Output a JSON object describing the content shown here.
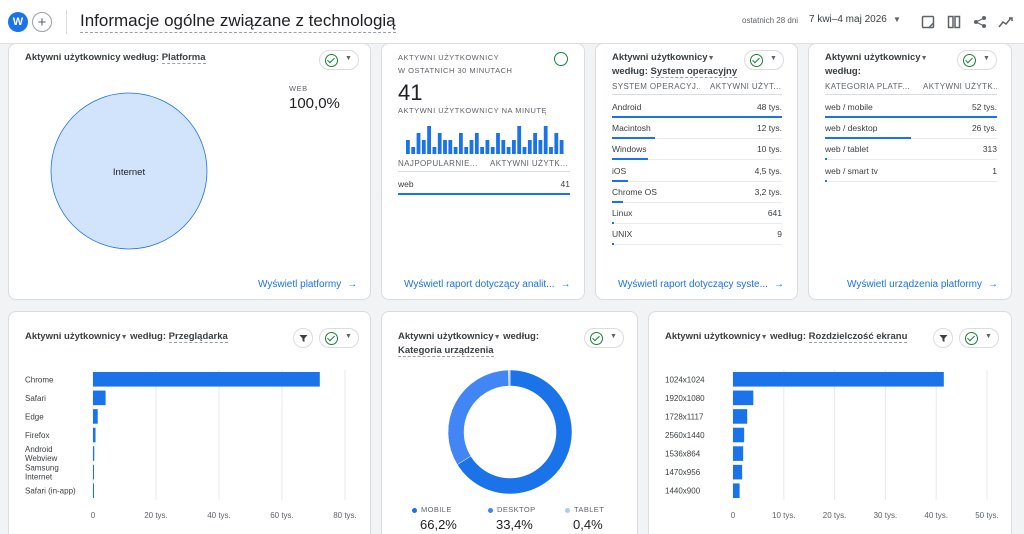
{
  "header": {
    "badge": "W",
    "plus": "+",
    "title": "Informacje ogólne związane z technologią",
    "date_label": "ostatnich 28 dni",
    "date_value": "7 kwi–4 maj 2026",
    "icons": [
      "compare-icon",
      "columns-icon",
      "share-icon",
      "insights-icon"
    ]
  },
  "platform_card": {
    "title_prefix": "Aktywni użytkownicy według: ",
    "title_dim": "Platforma",
    "legend_label": "WEB",
    "legend_value": "100,0%",
    "slice_label": "Internet",
    "link": "Wyświetl platformy",
    "chart_data": {
      "type": "pie",
      "categories": [
        "Internet"
      ],
      "values": [
        100.0
      ]
    }
  },
  "realtime_card": {
    "label1": "AKTYWNI UŻYTKOWNICY",
    "label2": "W OSTATNICH 30 MINUTACH",
    "big_value": "41",
    "per_minute_label": "AKTYWNI UŻYTKOWNICY NA MINUTĘ",
    "col1": "NAJPOPULARNIE...",
    "col2": "AKTYWNI UŻYTK...",
    "rows": [
      {
        "label": "web",
        "value": "41"
      }
    ],
    "link": "Wyświetl raport dotyczący analit...",
    "chart_data": {
      "type": "bar",
      "values": [
        2,
        1,
        3,
        2,
        4,
        1,
        3,
        2,
        2,
        1,
        3,
        1,
        2,
        3,
        1,
        2,
        1,
        3,
        2,
        1,
        2,
        4,
        1,
        2,
        3,
        2,
        4,
        1,
        3,
        2
      ]
    }
  },
  "os_card": {
    "title_prefix": "Aktywni użytkownicy",
    "title_mid": " według: ",
    "title_dim": "System operacyjny",
    "col1": "SYSTEM OPERACYJ...",
    "col2": "AKTYWNI UŻYT...",
    "rows": [
      {
        "label": "Android",
        "value": "48 tys.",
        "share": 1.0
      },
      {
        "label": "Macintosh",
        "value": "12 tys.",
        "share": 0.25
      },
      {
        "label": "Windows",
        "value": "10 tys.",
        "share": 0.21
      },
      {
        "label": "iOS",
        "value": "4,5 tys.",
        "share": 0.094
      },
      {
        "label": "Chrome OS",
        "value": "3,2 tys.",
        "share": 0.067
      },
      {
        "label": "Linux",
        "value": "641",
        "share": 0.013
      },
      {
        "label": "UNIX",
        "value": "9",
        "share": 0.0002
      }
    ],
    "link": "Wyświetl raport dotyczący syste..."
  },
  "device_platform_card": {
    "title_prefix": "Aktywni użytkownicy",
    "title_mid": " według:",
    "col1": "KATEGORIA PLATF...",
    "col2": "AKTYWNI UŻYTK...",
    "rows": [
      {
        "label": "web / mobile",
        "value": "52 tys.",
        "share": 1.0
      },
      {
        "label": "web / desktop",
        "value": "26 tys.",
        "share": 0.5
      },
      {
        "label": "web / tablet",
        "value": "313",
        "share": 0.006
      },
      {
        "label": "web / smart tv",
        "value": "1",
        "share": 0.0
      }
    ],
    "link": "Wyświetl urządzenia platformy"
  },
  "browser_card": {
    "title_prefix": "Aktywni użytkownicy",
    "title_mid": " według: ",
    "title_dim": "Przeglądarka",
    "chart_data": {
      "type": "bar",
      "orientation": "horizontal",
      "categories": [
        "Chrome",
        "Safari",
        "Edge",
        "Firefox",
        "Android Webview",
        "Samsung Internet",
        "Safari (in-app)"
      ],
      "category_lines": [
        [
          "Chrome"
        ],
        [
          "Safari"
        ],
        [
          "Edge"
        ],
        [
          "Firefox"
        ],
        [
          "Android",
          "Webview"
        ],
        [
          "Samsung",
          "Internet"
        ],
        [
          "Safari (in-app)"
        ]
      ],
      "values": [
        72,
        4,
        1.5,
        0.8,
        0.4,
        0.3,
        0.3
      ],
      "xlim": [
        0,
        80
      ],
      "ticks": [
        0,
        20,
        40,
        60,
        80
      ],
      "tick_labels": [
        "0",
        "20 tys.",
        "40 tys.",
        "60 tys.",
        "80 tys."
      ]
    }
  },
  "device_card": {
    "title_prefix": "Aktywni użytkownicy",
    "title_mid": " według:",
    "title_dim": "Kategoria urządzenia",
    "chart_data": {
      "type": "pie",
      "categories": [
        "MOBILE",
        "DESKTOP",
        "TABLET"
      ],
      "values": [
        66.2,
        33.4,
        0.4
      ],
      "value_labels": [
        "66,2%",
        "33,4%",
        "0,4%"
      ]
    },
    "colors": [
      "#1a73e8",
      "#4285f4",
      "#aecbfa"
    ]
  },
  "resolution_card": {
    "title_prefix": "Aktywni użytkownicy",
    "title_mid": " według: ",
    "title_dim": "Rozdzielczość ekranu",
    "chart_data": {
      "type": "bar",
      "orientation": "horizontal",
      "categories": [
        "1024x1024",
        "1920x1080",
        "1728x1117",
        "2560x1440",
        "1536x864",
        "1470x956",
        "1440x900"
      ],
      "values": [
        41.5,
        4,
        2.8,
        2.2,
        2,
        1.8,
        1.3
      ],
      "xlim": [
        0,
        50
      ],
      "ticks": [
        0,
        10,
        20,
        30,
        40,
        50
      ],
      "tick_labels": [
        "0",
        "10 tys.",
        "20 tys.",
        "30 tys.",
        "40 tys.",
        "50 tys."
      ]
    }
  }
}
